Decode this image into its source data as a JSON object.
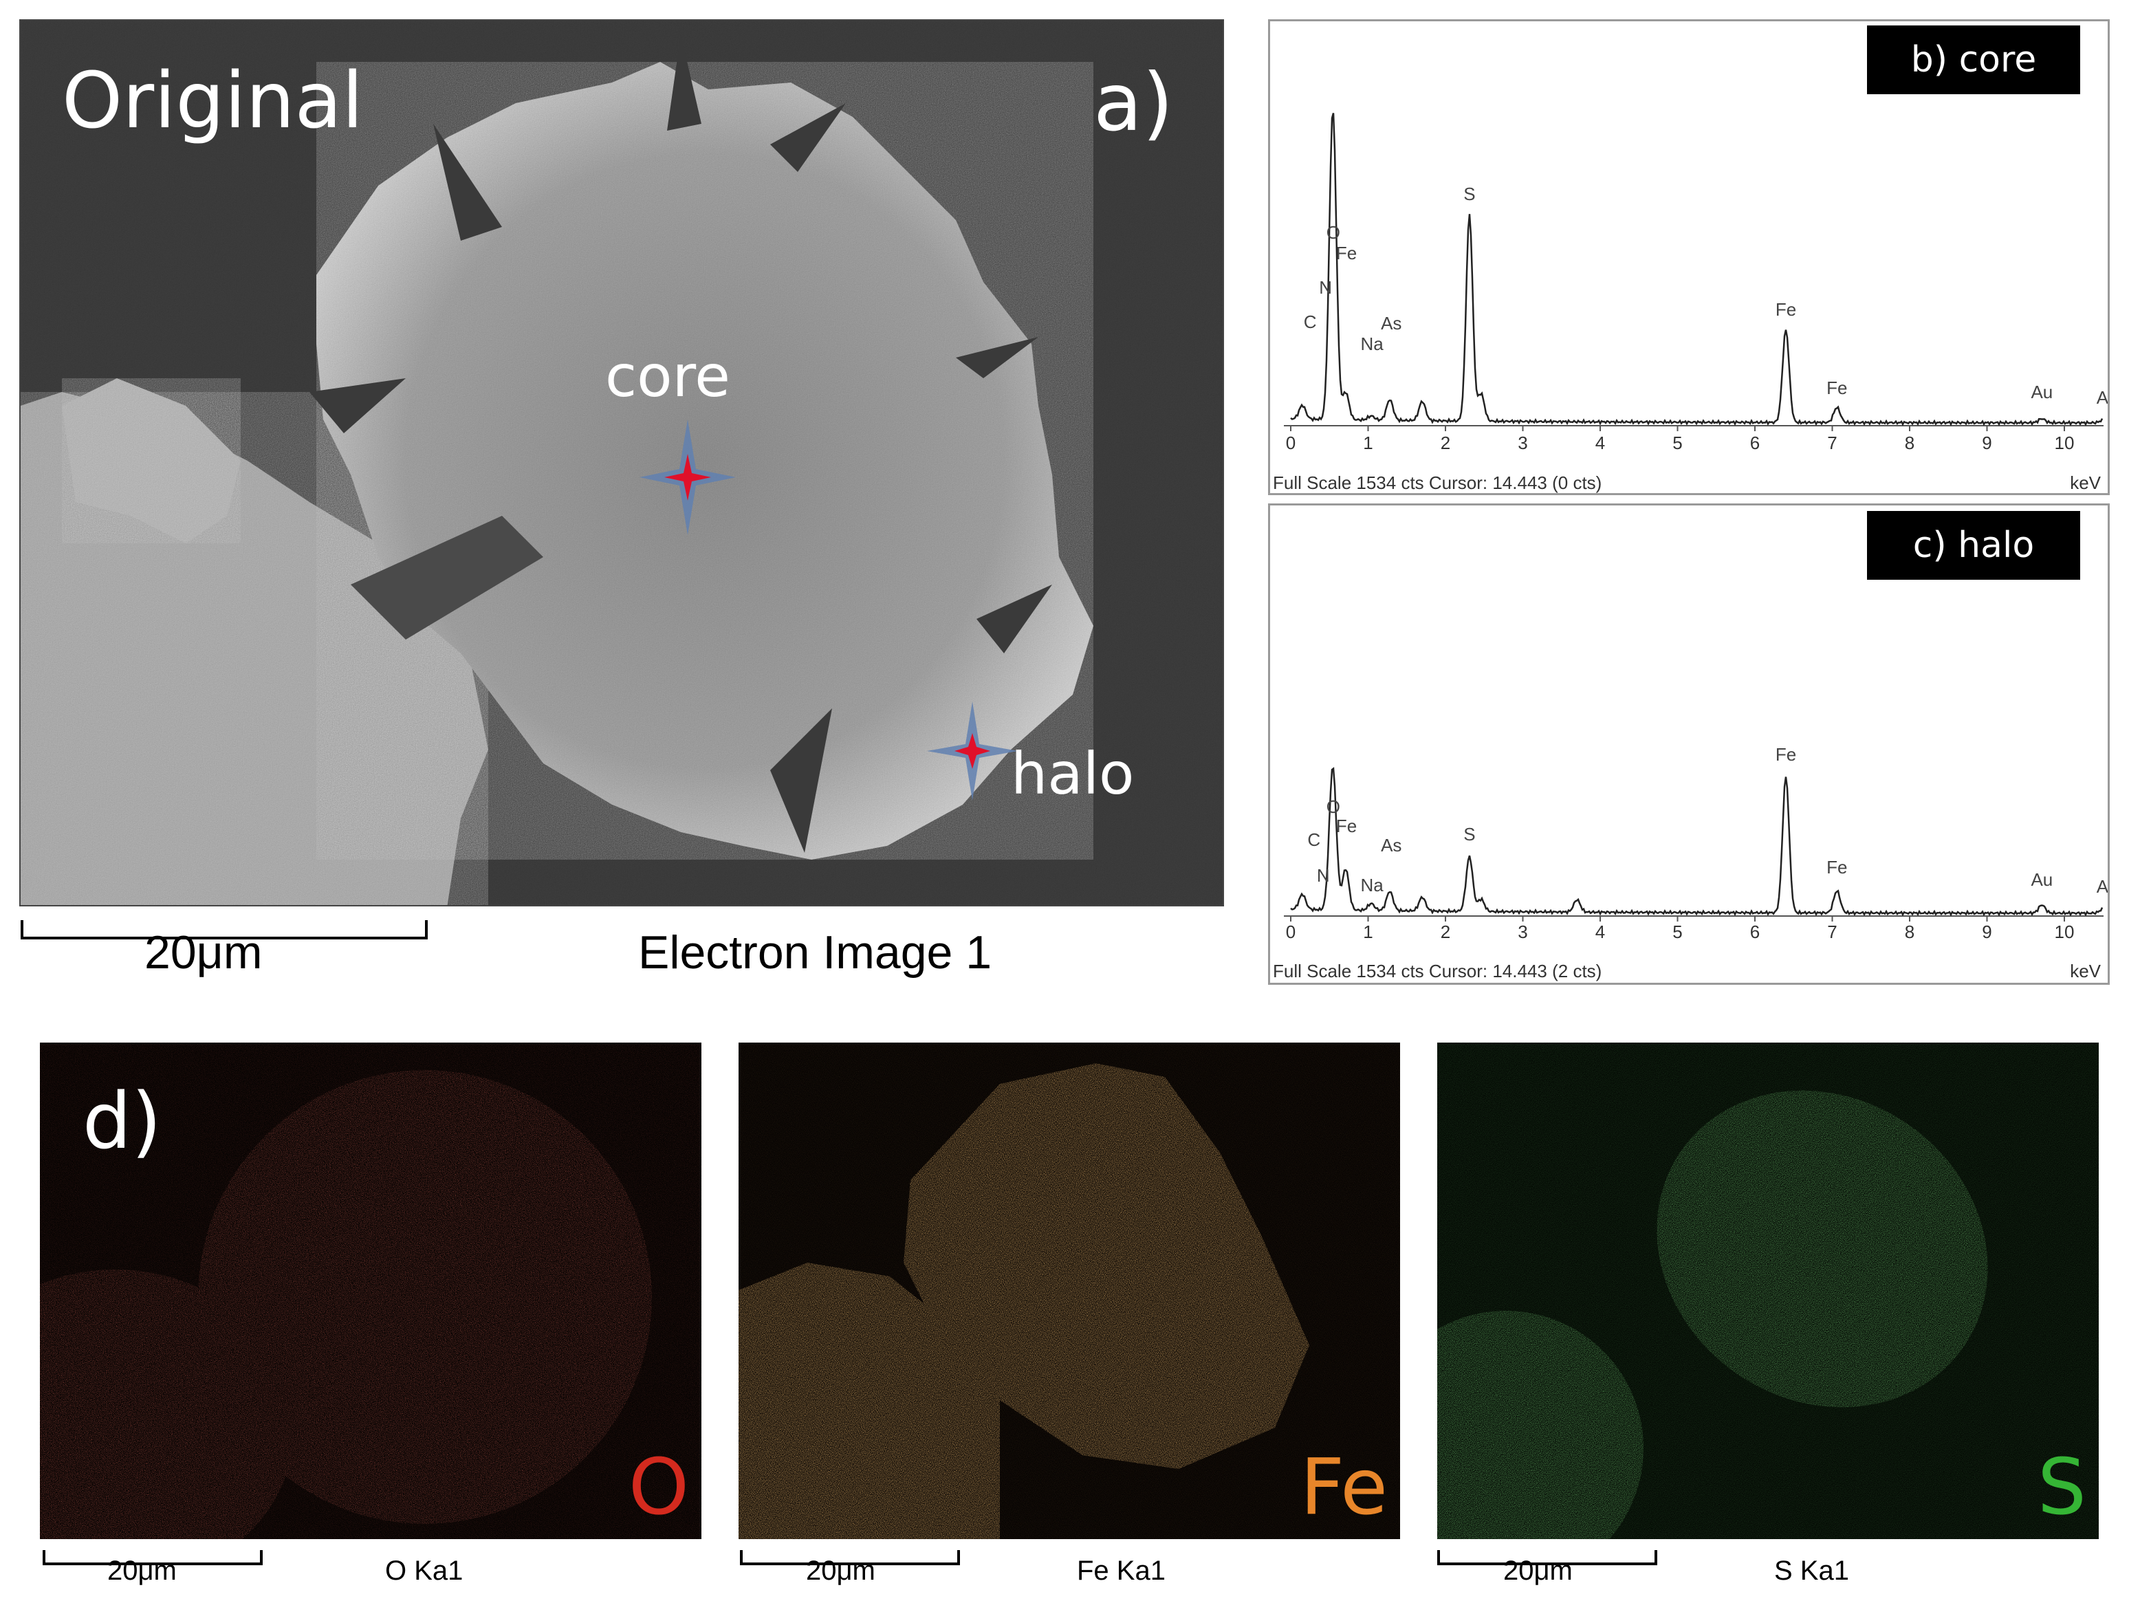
{
  "panel_a": {
    "title": "Original",
    "letter": "a)",
    "point_core": "core",
    "point_halo": "halo",
    "scalebar": "20μm",
    "caption": "Electron Image 1"
  },
  "spectra": [
    {
      "tag": "b) core",
      "footer": "Full Scale 1534 cts Cursor: 14.443  (0 cts)",
      "unit": "keV",
      "ticks": [
        "0",
        "1",
        "2",
        "3",
        "4",
        "5",
        "6",
        "7",
        "8",
        "9",
        "10"
      ],
      "peak_labels": [
        "O",
        "Fe",
        "N",
        "C",
        "Na",
        "As",
        "S",
        "Fe",
        "Fe",
        "Au",
        "As"
      ]
    },
    {
      "tag": "c) halo",
      "footer": "Full Scale 1534 cts Cursor: 14.443  (2 cts)",
      "unit": "keV",
      "ticks": [
        "0",
        "1",
        "2",
        "3",
        "4",
        "5",
        "6",
        "7",
        "8",
        "9",
        "10"
      ],
      "peak_labels": [
        "O",
        "Fe",
        "C",
        "N",
        "Na",
        "As",
        "S",
        "Fe",
        "Fe",
        "Au",
        "As"
      ]
    }
  ],
  "panel_d": {
    "letter": "d)",
    "maps": [
      {
        "element": "O",
        "caption": "O Ka1",
        "scalebar": "20μm",
        "color": "#d42a1e"
      },
      {
        "element": "Fe",
        "caption": "Fe Ka1",
        "scalebar": "20μm",
        "color": "#e8862a"
      },
      {
        "element": "S",
        "caption": "S Ka1",
        "scalebar": "20μm",
        "color": "#35b535"
      }
    ]
  },
  "colors": {
    "marker_red": "#e0102a",
    "marker_blue": "#6080b0"
  }
}
